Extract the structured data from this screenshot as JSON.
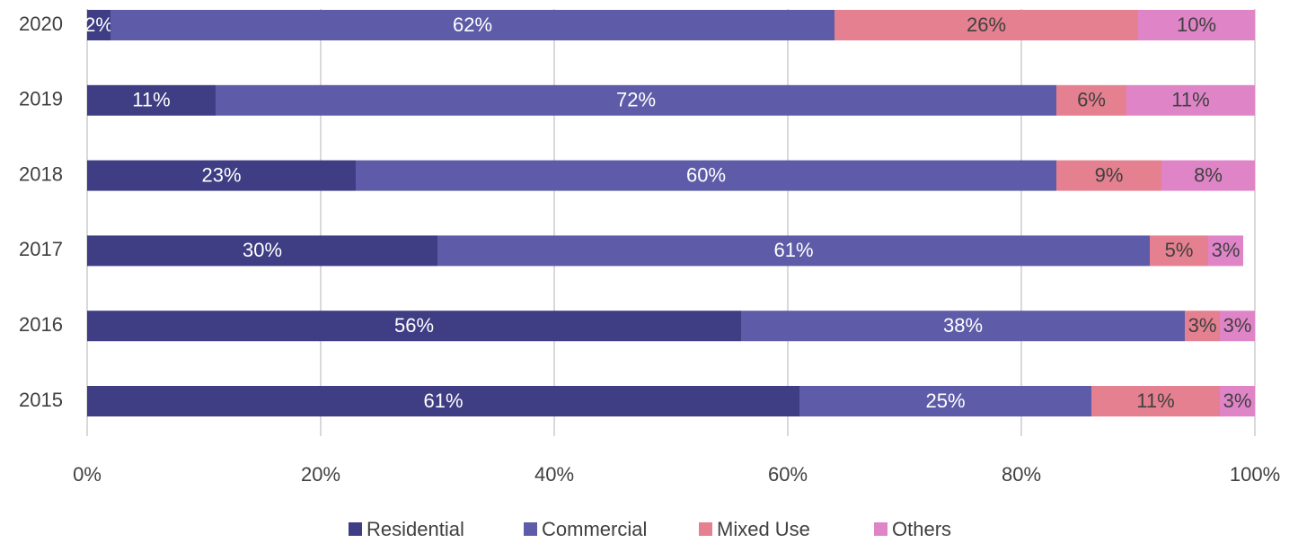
{
  "chart_data": {
    "type": "stacked_bar_horizontal",
    "categories": [
      "2020",
      "2019",
      "2018",
      "2017",
      "2016",
      "2015"
    ],
    "series": [
      {
        "name": "Residential",
        "color": "#3f3d84",
        "values": [
          2,
          11,
          23,
          30,
          56,
          61
        ],
        "value_labels": [
          "2%",
          "11%",
          "23%",
          "30%",
          "56%",
          "61%"
        ]
      },
      {
        "name": "Commercial",
        "color": "#5e5ca8",
        "values": [
          62,
          72,
          60,
          61,
          38,
          25
        ],
        "value_labels": [
          "62%",
          "72%",
          "60%",
          "61%",
          "38%",
          "25%"
        ]
      },
      {
        "name": "Mixed Use",
        "color": "#e4808f",
        "values": [
          26,
          6,
          9,
          5,
          3,
          11
        ],
        "value_labels": [
          "26%",
          "6%",
          "9%",
          "5%",
          "3%",
          "11%"
        ]
      },
      {
        "name": "Others",
        "color": "#e084c8",
        "values": [
          10,
          11,
          8,
          3,
          3,
          3
        ],
        "value_labels": [
          "10%",
          "11%",
          "8%",
          "3%",
          "3%",
          "3%"
        ]
      }
    ],
    "xlim": [
      0,
      100
    ],
    "xticks": [
      {
        "value": 0,
        "label": "0%"
      },
      {
        "value": 20,
        "label": "20%"
      },
      {
        "value": 40,
        "label": "40%"
      },
      {
        "value": 60,
        "label": "60%"
      },
      {
        "value": 80,
        "label": "80%"
      },
      {
        "value": 100,
        "label": "100%"
      }
    ],
    "grid": true,
    "legend": "bottom"
  }
}
